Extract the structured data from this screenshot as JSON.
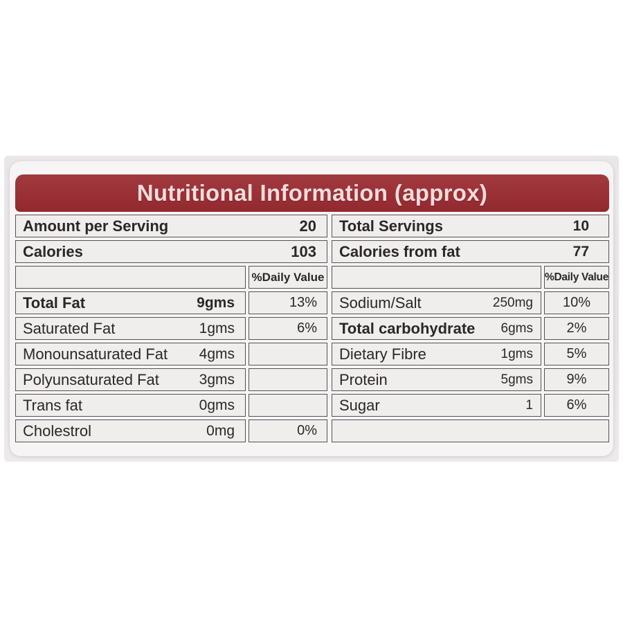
{
  "title": "Nutritional Information (approx)",
  "dv_header": "%Daily Value",
  "table": {
    "left": {
      "summary": [
        {
          "label": "Amount per Serving",
          "value": "20"
        },
        {
          "label": "Calories",
          "value": "103"
        }
      ],
      "rows": [
        {
          "label": "Total Fat",
          "amount": "9gms",
          "dv": "13%"
        },
        {
          "label": "Saturated Fat",
          "amount": "1gms",
          "dv": "6%"
        },
        {
          "label": "Monounsaturated Fat",
          "amount": "4gms",
          "dv": ""
        },
        {
          "label": "Polyunsaturated Fat",
          "amount": "3gms",
          "dv": ""
        },
        {
          "label": "Trans fat",
          "amount": "0gms",
          "dv": ""
        },
        {
          "label": "Cholestrol",
          "amount": "0mg",
          "dv": "0%"
        }
      ]
    },
    "right": {
      "summary": [
        {
          "label": "Total Servings",
          "value": "10"
        },
        {
          "label": "Calories from fat",
          "value": "77"
        }
      ],
      "rows": [
        {
          "label": "Sodium/Salt",
          "amount": "250mg",
          "dv": "10%"
        },
        {
          "label": "Total carbohydrate",
          "amount": "6gms",
          "dv": "2%"
        },
        {
          "label": "Dietary Fibre",
          "amount": "1gms",
          "dv": "5%"
        },
        {
          "label": "Protein",
          "amount": "5gms",
          "dv": "9%"
        },
        {
          "label": "Sugar",
          "amount": "1",
          "dv": "6%"
        }
      ]
    }
  },
  "colors": {
    "header_bg": "#9c3237",
    "header_text": "#f4dcdc",
    "cell_bg": "#f0eded",
    "border": "#575052",
    "text": "#2b2728",
    "photo_bg": "#e8e4e6",
    "card_bg": "#f7f4f6"
  }
}
